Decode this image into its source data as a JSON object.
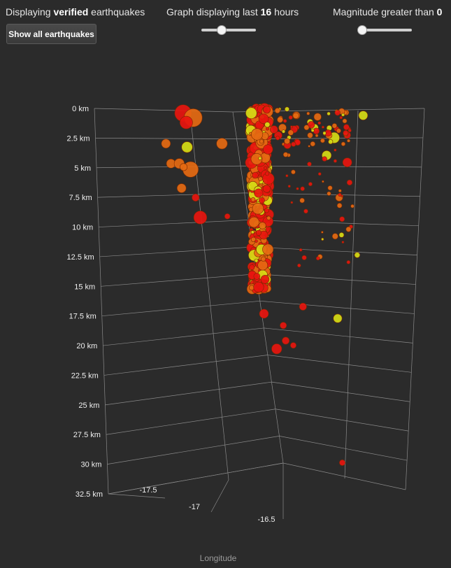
{
  "controls": {
    "verified_prefix": "Displaying ",
    "verified_bold": "verified",
    "verified_suffix": " earthquakes",
    "hours_prefix": "Graph displaying last ",
    "hours_bold": "16",
    "hours_suffix": " hours",
    "mag_prefix": "Magnitude greater than ",
    "mag_bold": "0",
    "show_all_button": "Show all earthquakes",
    "hours_slider_value": 0.35,
    "mag_slider_value": 0.0
  },
  "chart_data": {
    "type": "scatter",
    "title": "",
    "xlabel": "Longitude",
    "ylabel": "",
    "z_ticks": [
      "0 km",
      "2.5 km",
      "5 km",
      "7.5 km",
      "10 km",
      "12.5 km",
      "15 km",
      "17.5 km",
      "20 km",
      "22.5 km",
      "25 km",
      "27.5 km",
      "30 km",
      "32.5 km"
    ],
    "x_ticks": [
      "-17.5",
      "-17",
      "-16.5"
    ],
    "depth_range": [
      0,
      32.5
    ],
    "colors": {
      "red": "#e8150f",
      "orange": "#e56a12",
      "yellow": "#d6dd16"
    },
    "points": [
      {
        "lon": -17.62,
        "depth": 0.4,
        "size": 4.6,
        "color": "red"
      },
      {
        "lon": -17.55,
        "depth": 0.8,
        "size": 5.0,
        "color": "orange"
      },
      {
        "lon": -17.6,
        "depth": 1.2,
        "size": 3.5,
        "color": "red"
      },
      {
        "lon": -17.75,
        "depth": 3.0,
        "size": 2.5,
        "color": "orange"
      },
      {
        "lon": -17.6,
        "depth": 3.3,
        "size": 3.0,
        "color": "yellow"
      },
      {
        "lon": -17.72,
        "depth": 4.7,
        "size": 2.5,
        "color": "orange"
      },
      {
        "lon": -17.66,
        "depth": 4.7,
        "size": 2.8,
        "color": "orange"
      },
      {
        "lon": -17.58,
        "depth": 5.2,
        "size": 4.3,
        "color": "orange"
      },
      {
        "lon": -17.63,
        "depth": 5.0,
        "size": 2.0,
        "color": "orange"
      },
      {
        "lon": -17.65,
        "depth": 6.8,
        "size": 2.5,
        "color": "orange"
      },
      {
        "lon": -17.55,
        "depth": 7.6,
        "size": 2.0,
        "color": "red"
      },
      {
        "lon": -17.52,
        "depth": 9.3,
        "size": 3.6,
        "color": "red"
      },
      {
        "lon": -17.35,
        "depth": 3.0,
        "size": 3.0,
        "color": "orange"
      },
      {
        "lon": -17.32,
        "depth": 9.2,
        "size": 1.5,
        "color": "red"
      },
      {
        "lon": -17.05,
        "depth": 17.5,
        "size": 2.5,
        "color": "red"
      },
      {
        "lon": -16.95,
        "depth": 20.5,
        "size": 2.8,
        "color": "red"
      },
      {
        "lon": -16.88,
        "depth": 19.8,
        "size": 2.0,
        "color": "red"
      },
      {
        "lon": -16.9,
        "depth": 18.5,
        "size": 1.8,
        "color": "red"
      },
      {
        "lon": -16.82,
        "depth": 20.2,
        "size": 1.6,
        "color": "red"
      },
      {
        "lon": -16.75,
        "depth": 16.9,
        "size": 2.0,
        "color": "red"
      },
      {
        "lon": -16.48,
        "depth": 17.9,
        "size": 2.4,
        "color": "yellow"
      },
      {
        "lon": -16.4,
        "depth": 30.2,
        "size": 1.6,
        "color": "red"
      },
      {
        "lon": -16.35,
        "depth": 0.6,
        "size": 2.5,
        "color": "yellow"
      },
      {
        "lon": -16.55,
        "depth": 2.5,
        "size": 3.0,
        "color": "yellow"
      },
      {
        "lon": -16.6,
        "depth": 4.0,
        "size": 2.6,
        "color": "yellow"
      },
      {
        "lon": -16.45,
        "depth": 4.6,
        "size": 2.5,
        "color": "red"
      },
      {
        "lon": -16.5,
        "depth": 7.6,
        "size": 2.0,
        "color": "orange"
      },
      {
        "lon": -16.52,
        "depth": 10.9,
        "size": 1.6,
        "color": "orange"
      },
      {
        "lon": -16.35,
        "depth": 12.5,
        "size": 1.5,
        "color": "yellow"
      }
    ]
  }
}
